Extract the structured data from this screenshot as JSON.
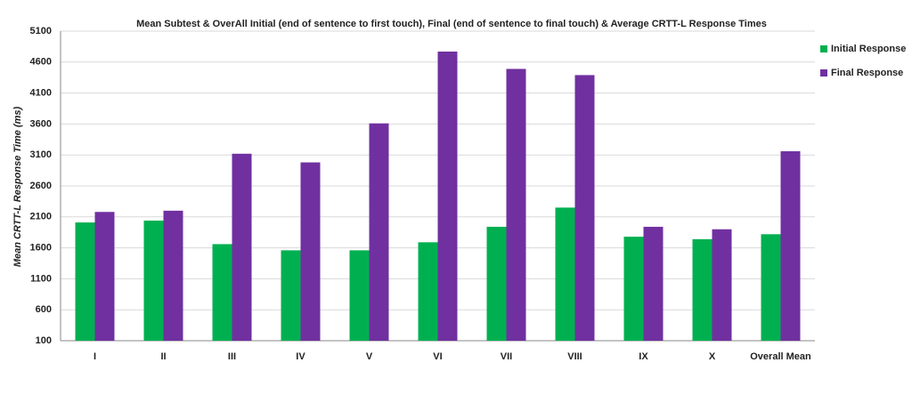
{
  "chart_data": {
    "type": "bar",
    "title": "Mean Subtest & OverAll Initial (end of sentence to first touch), Final (end of sentence to final touch) & Average CRTT-L Response Times",
    "y_label": "Mean CRTT-L Response Time (ms)",
    "categories": [
      "I",
      "II",
      "III",
      "IV",
      "V",
      "VI",
      "VII",
      "VIII",
      "IX",
      "X",
      "Overall Mean"
    ],
    "series": [
      {
        "name": "Initial Response",
        "color": "#00b050",
        "values": [
          2010,
          2040,
          1660,
          1560,
          1560,
          1690,
          1940,
          2250,
          1780,
          1740,
          1820
        ]
      },
      {
        "name": "Final Response",
        "color": "#7030a0",
        "values": [
          2180,
          2200,
          3120,
          2980,
          3610,
          4770,
          4490,
          4390,
          1940,
          1900,
          3160
        ]
      }
    ],
    "ylim": [
      100,
      5100
    ],
    "yticks": [
      100,
      600,
      1100,
      1600,
      2100,
      2600,
      3100,
      3600,
      4100,
      4600,
      5100
    ],
    "grid": true,
    "legend": "right"
  }
}
